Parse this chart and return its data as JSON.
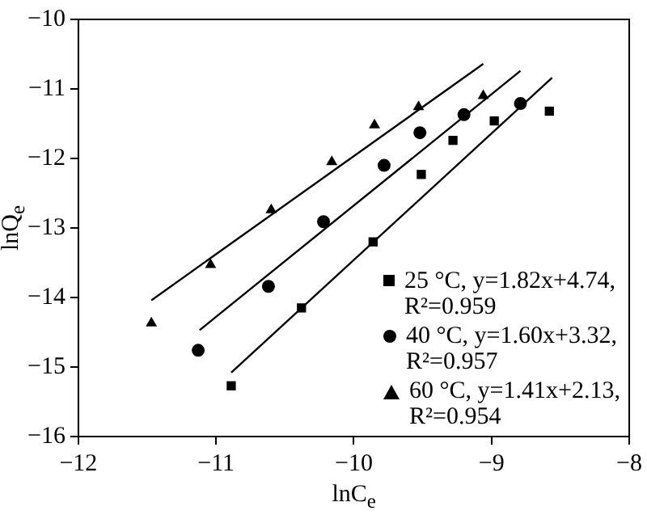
{
  "chart_data": {
    "type": "scatter",
    "xlabel": "lnC$_{e}$",
    "ylabel": "lnQ$_{e}$",
    "xlim": [
      -12,
      -8
    ],
    "ylim": [
      -16,
      -10
    ],
    "xticks": [
      -12,
      -11,
      -10,
      -9,
      -8
    ],
    "yticks": [
      -16,
      -15,
      -14,
      -13,
      -12,
      -11,
      -10
    ],
    "grid": false,
    "legend": "bottom right",
    "series": [
      {
        "name": "25 °C, y=1.82x+4.74, R²=0.959",
        "color": "#000000",
        "marker": "square",
        "x": [
          -10.89,
          -10.38,
          -9.86,
          -9.51,
          -9.28,
          -8.98,
          -8.58
        ],
        "values": [
          -15.27,
          -14.15,
          -13.2,
          -12.23,
          -11.74,
          -11.46,
          -11.32
        ]
      },
      {
        "name": "40 °C, y=1.60x+3.32, R²=0.957",
        "color": "#000000",
        "marker": "circle",
        "x": [
          -11.13,
          -10.62,
          -10.22,
          -9.78,
          -9.52,
          -9.2,
          -8.79
        ],
        "values": [
          -14.76,
          -13.84,
          -12.91,
          -12.1,
          -11.63,
          -11.37,
          -11.21
        ]
      },
      {
        "name": "60 °C, y=1.41x+2.13, R²=0.954",
        "color": "#000000",
        "marker": "triangle",
        "x": [
          -11.47,
          -11.04,
          -10.6,
          -10.16,
          -9.85,
          -9.53,
          -9.06
        ],
        "values": [
          -14.37,
          -13.53,
          -12.74,
          -12.05,
          -11.52,
          -11.26,
          -11.1
        ]
      },
      {
        "type": "line",
        "color": "#000000",
        "marker": "none",
        "x": [
          -10.89,
          -8.56
        ],
        "values": [
          -15.08,
          -10.84
        ]
      },
      {
        "type": "line",
        "color": "#000000",
        "marker": "none",
        "x": [
          -11.12,
          -8.79
        ],
        "values": [
          -14.47,
          -10.74
        ]
      },
      {
        "type": "line",
        "color": "#000000",
        "marker": "none",
        "x": [
          -11.47,
          -9.06
        ],
        "values": [
          -14.04,
          -10.64
        ]
      }
    ]
  }
}
